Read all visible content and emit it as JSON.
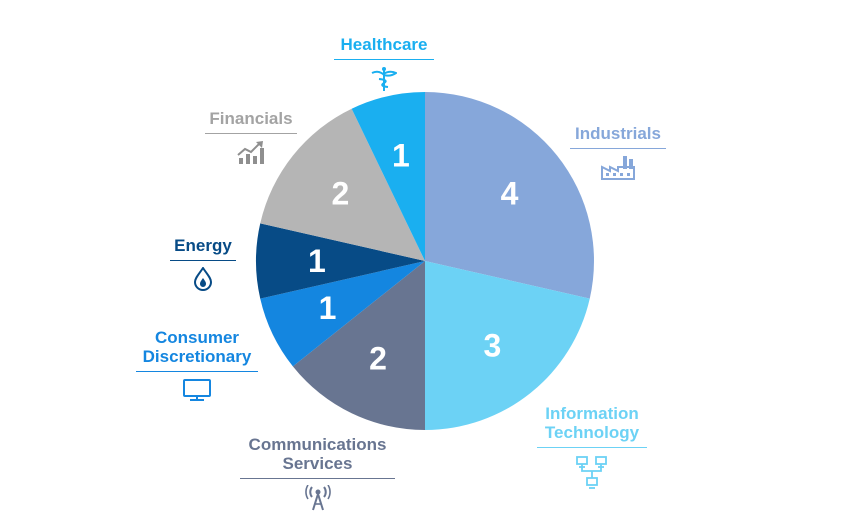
{
  "chart_data": {
    "type": "pie",
    "title": "",
    "start": "12 o'clock",
    "direction": "clockwise",
    "legend": "external labels with icons around the pie",
    "slices": [
      {
        "category": "Industrials",
        "value": 4,
        "color": "#86a7da",
        "icon": "factory-icon"
      },
      {
        "category": "Information Technology",
        "value": 3,
        "color": "#6cd2f5",
        "icon": "network-icon"
      },
      {
        "category": "Communications Services",
        "value": 2,
        "color": "#687591",
        "icon": "antenna-tower-icon"
      },
      {
        "category": "Consumer Discretionary",
        "value": 1,
        "color": "#1486e0",
        "icon": "monitor-icon"
      },
      {
        "category": "Energy",
        "value": 1,
        "color": "#074b86",
        "icon": "water-drop-flame-icon"
      },
      {
        "category": "Financials",
        "value": 2,
        "color": "#b5b5b5",
        "icon": "bar-chart-trend-icon"
      },
      {
        "category": "Healthcare",
        "value": 1,
        "color": "#1aaff0",
        "icon": "caduceus-icon"
      }
    ]
  }
}
